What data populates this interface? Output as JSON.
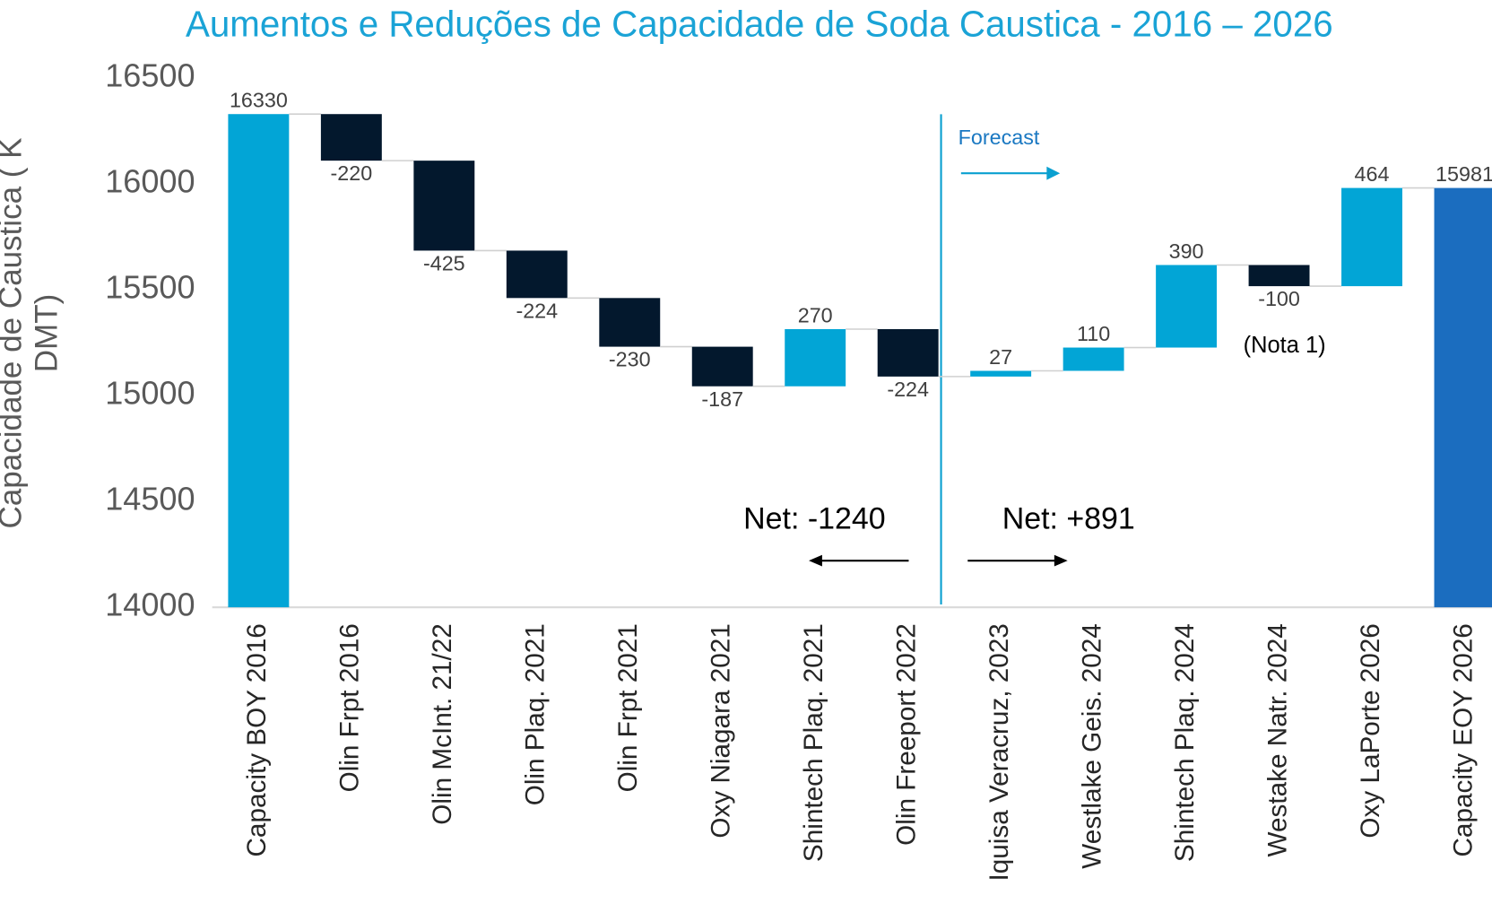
{
  "chart_data": {
    "type": "waterfall",
    "title": "Aumentos e Reduções de Capacidade de Soda Caustica - 2016 – 2026",
    "y_label": "Capacidade de Caustica ( K DMT)",
    "categories": [
      "Capacity BOY 2016",
      "Olin Frpt 2016",
      "Olin McInt. 21/22",
      "Olin Plaq. 2021",
      "Olin Frpt 2021",
      "Oxy Niagara 2021",
      "Shintech Plaq. 2021",
      "Olin Freeport 2022",
      "Iquisa Veracruz, 2023",
      "Westlake Geis. 2024",
      "Shintech Plaq. 2024",
      "Westake Natr. 2024",
      "Oxy LaPorte 2026",
      "Capacity EOY 2026"
    ],
    "values": [
      16330,
      -220,
      -425,
      -224,
      -230,
      -187,
      270,
      -224,
      27,
      110,
      390,
      -100,
      464,
      15981
    ],
    "colors": [
      "#02a5d6",
      "#03182d",
      "#03182d",
      "#03182d",
      "#03182d",
      "#03182d",
      "#02a5d6",
      "#03182d",
      "#02a5d6",
      "#02a5d6",
      "#02a5d6",
      "#03182d",
      "#02a5d6",
      "#1b6dbf"
    ],
    "ylim": [
      14000,
      16500
    ],
    "yticks": [
      14000,
      14500,
      15000,
      15500,
      16000,
      16500
    ],
    "annotations": {
      "forecast": "Forecast",
      "net_before": "Net: -1240",
      "net_after": "Net: +891",
      "note": "(Nota 1)"
    }
  }
}
